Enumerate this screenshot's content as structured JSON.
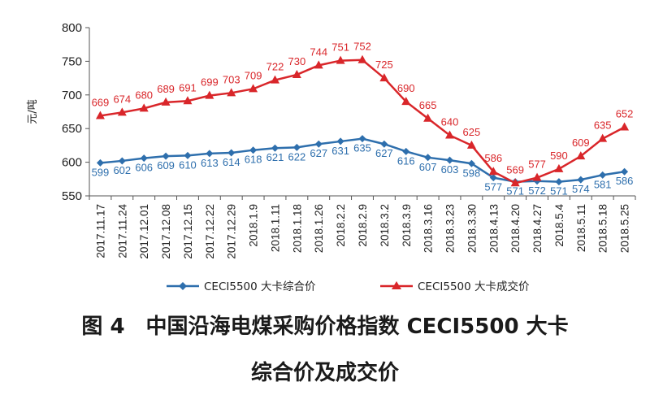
{
  "caption": {
    "line1": "图 4　中国沿海电煤采购价格指数 CECI5500 大卡",
    "line2": "综合价及成交价"
  },
  "chart_data": {
    "type": "line",
    "ylabel": "元/吨",
    "ylim": [
      550,
      800
    ],
    "yticks": [
      550,
      600,
      650,
      700,
      750,
      800
    ],
    "grid": false,
    "legend_position": "bottom",
    "x": [
      "2017.11.17",
      "2017.11.24",
      "2017.12.01",
      "2017.12.08",
      "2017.12.15",
      "2017.12.22",
      "2017.12.29",
      "2018.1.9",
      "2018.1.11",
      "2018.1.18",
      "2018.1.26",
      "2018.2.2",
      "2018.2.9",
      "2018.3.2",
      "2018.3.9",
      "2018.3.16",
      "2018.3.23",
      "2018.3.30",
      "2018.4.13",
      "2018.4.20",
      "2018.4.27",
      "2018.5.4",
      "2018.5.11",
      "2018.5.18",
      "2018.5.25"
    ],
    "series": [
      {
        "name": "CECI5500 大卡综合价",
        "color": "#2e6fad",
        "marker": "diamond",
        "values": [
          599,
          602,
          606,
          609,
          610,
          613,
          614,
          618,
          621,
          622,
          627,
          631,
          635,
          627,
          616,
          607,
          603,
          598,
          577,
          571,
          572,
          571,
          574,
          581,
          586
        ]
      },
      {
        "name": "CECI5500 大卡成交价",
        "color": "#d9262a",
        "marker": "triangle",
        "values": [
          669,
          674,
          680,
          689,
          691,
          699,
          703,
          709,
          722,
          730,
          744,
          751,
          752,
          725,
          690,
          665,
          640,
          625,
          586,
          569,
          577,
          590,
          609,
          635,
          652
        ]
      }
    ]
  }
}
